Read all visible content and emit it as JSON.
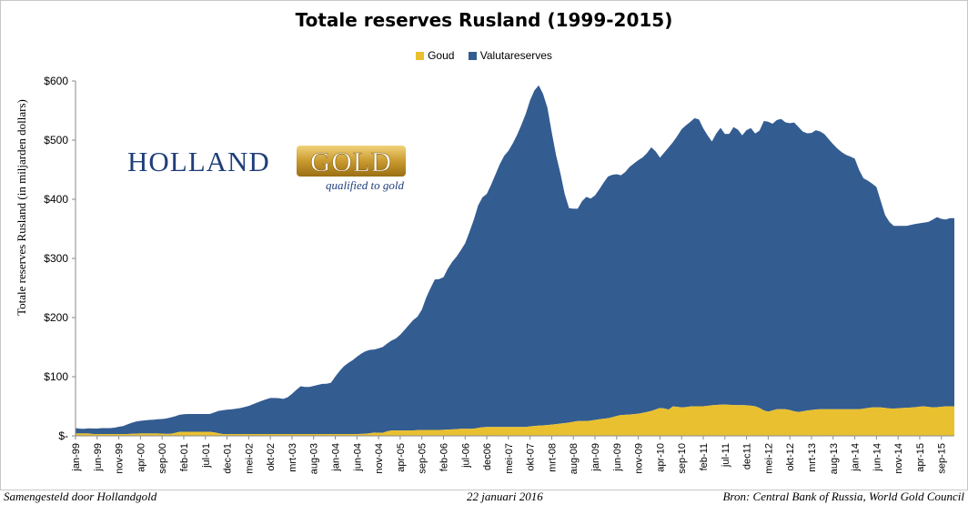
{
  "footer": {
    "left": "Samengesteld door Hollandgold",
    "center": "22 januari 2016",
    "right": "Bron: Central Bank of Russia, World Gold Council"
  },
  "logo": {
    "word1": "HOLLAND",
    "word2": "GOLD",
    "tagline": "qualified to gold",
    "navy": "#1f3f7a",
    "gold": "#c99a2e"
  },
  "colors": {
    "goud": "#e8c030",
    "valuta": "#335c91"
  },
  "chart_data": {
    "type": "area",
    "stacked": true,
    "title": "Totale reserves Rusland (1999-2015)",
    "ylabel": "Totale reserves Rusland (in miljarden dollars)",
    "xlabel": "",
    "ylim": [
      0,
      600
    ],
    "yticks": [
      "$-",
      "$100",
      "$200",
      "$300",
      "$400",
      "$500",
      "$600"
    ],
    "xtick_labels": [
      "jan-99",
      "jun-99",
      "nov-99",
      "apr-00",
      "sep-00",
      "feb-01",
      "jul-01",
      "dec-01",
      "mei-02",
      "okt-02",
      "mrt-03",
      "aug-03",
      "jan-04",
      "jun-04",
      "nov-04",
      "apr-05",
      "sep-05",
      "feb-06",
      "jul-06",
      "dec06",
      "mei-07",
      "okt-07",
      "mrt-08",
      "aug-08",
      "jan-09",
      "jun-09",
      "nov-09",
      "apr-10",
      "sep-10",
      "feb-11",
      "jul-11",
      "dec11",
      "mei-12",
      "okt-12",
      "mrt-13",
      "aug-13",
      "jan-14",
      "jun-14",
      "nov-14",
      "apr-15",
      "sep-15"
    ],
    "legend": {
      "position": "top"
    },
    "grid": false,
    "series": [
      {
        "name": "Goud",
        "color": "#e8c030",
        "points": [
          [
            0,
            4
          ],
          [
            2,
            4
          ],
          [
            4,
            4
          ],
          [
            5,
            3
          ],
          [
            9,
            3
          ],
          [
            12,
            3
          ],
          [
            15,
            3
          ],
          [
            18,
            4
          ],
          [
            21,
            4
          ],
          [
            24,
            4
          ],
          [
            27,
            3
          ],
          [
            30,
            7
          ],
          [
            33,
            7
          ],
          [
            36,
            7
          ],
          [
            39,
            7
          ],
          [
            42,
            3
          ],
          [
            45,
            3
          ],
          [
            48,
            3
          ],
          [
            51,
            3
          ],
          [
            54,
            3
          ],
          [
            57,
            3
          ],
          [
            60,
            3
          ],
          [
            63,
            3
          ],
          [
            66,
            3
          ],
          [
            69,
            3
          ],
          [
            72,
            3
          ],
          [
            75,
            3
          ],
          [
            78,
            3
          ],
          [
            81,
            3
          ],
          [
            84,
            4
          ],
          [
            86,
            6
          ],
          [
            87,
            5
          ],
          [
            88,
            5
          ],
          [
            90,
            9
          ],
          [
            93,
            9
          ],
          [
            96,
            9
          ],
          [
            99,
            10
          ],
          [
            102,
            10
          ],
          [
            105,
            10
          ],
          [
            108,
            11
          ],
          [
            111,
            12
          ],
          [
            114,
            12
          ],
          [
            117,
            15
          ],
          [
            120,
            15
          ],
          [
            123,
            15
          ],
          [
            126,
            15
          ],
          [
            129,
            15
          ],
          [
            132,
            17
          ],
          [
            135,
            18
          ],
          [
            138,
            20
          ],
          [
            141,
            22
          ],
          [
            144,
            25
          ],
          [
            147,
            25
          ],
          [
            150,
            28
          ],
          [
            153,
            30
          ],
          [
            156,
            35
          ],
          [
            159,
            36
          ],
          [
            162,
            38
          ],
          [
            165,
            42
          ],
          [
            168,
            48
          ],
          [
            170,
            44
          ],
          [
            171,
            50
          ],
          [
            174,
            48
          ],
          [
            177,
            50
          ],
          [
            180,
            50
          ],
          [
            183,
            52
          ],
          [
            186,
            53
          ],
          [
            189,
            52
          ],
          [
            192,
            52
          ],
          [
            195,
            50
          ],
          [
            197,
            45
          ],
          [
            198,
            40
          ],
          [
            201,
            45
          ],
          [
            204,
            45
          ],
          [
            207,
            40
          ],
          [
            210,
            43
          ],
          [
            213,
            45
          ],
          [
            216,
            45
          ],
          [
            219,
            45
          ],
          [
            222,
            45
          ],
          [
            225,
            45
          ],
          [
            228,
            48
          ],
          [
            231,
            48
          ],
          [
            234,
            46
          ],
          [
            237,
            47
          ],
          [
            240,
            48
          ],
          [
            243,
            50
          ],
          [
            246,
            48
          ],
          [
            250,
            50
          ],
          [
            252,
            50
          ]
        ]
      },
      {
        "name": "Valutareserves",
        "color": "#335c91",
        "points": [
          [
            0,
            13
          ],
          [
            2,
            12
          ],
          [
            4,
            12
          ],
          [
            6,
            13
          ],
          [
            8,
            12
          ],
          [
            10,
            13
          ],
          [
            12,
            13
          ],
          [
            14,
            13
          ],
          [
            16,
            14
          ],
          [
            18,
            16
          ],
          [
            20,
            17
          ],
          [
            21,
            20
          ],
          [
            24,
            24
          ],
          [
            27,
            26
          ],
          [
            30,
            27
          ],
          [
            33,
            28
          ],
          [
            36,
            29
          ],
          [
            39,
            32
          ],
          [
            42,
            36
          ],
          [
            45,
            37
          ],
          [
            48,
            37
          ],
          [
            51,
            37
          ],
          [
            54,
            37
          ],
          [
            57,
            42
          ],
          [
            60,
            44
          ],
          [
            63,
            45
          ],
          [
            66,
            47
          ],
          [
            69,
            50
          ],
          [
            72,
            55
          ],
          [
            75,
            60
          ],
          [
            78,
            64
          ],
          [
            81,
            64
          ],
          [
            84,
            62
          ],
          [
            87,
            72
          ],
          [
            90,
            84
          ],
          [
            93,
            82
          ],
          [
            96,
            85
          ],
          [
            99,
            88
          ],
          [
            102,
            88
          ],
          [
            105,
            106
          ],
          [
            108,
            120
          ],
          [
            111,
            128
          ],
          [
            114,
            138
          ],
          [
            117,
            145
          ],
          [
            120,
            146
          ],
          [
            123,
            150
          ],
          [
            126,
            160
          ],
          [
            129,
            166
          ],
          [
            132,
            180
          ],
          [
            135,
            195
          ],
          [
            138,
            205
          ],
          [
            141,
            240
          ],
          [
            144,
            265
          ],
          [
            147,
            265
          ],
          [
            150,
            290
          ],
          [
            153,
            305
          ],
          [
            156,
            325
          ],
          [
            159,
            358
          ],
          [
            162,
            400
          ],
          [
            165,
            410
          ],
          [
            168,
            440
          ],
          [
            171,
            470
          ],
          [
            174,
            485
          ],
          [
            177,
            510
          ],
          [
            180,
            540
          ],
          [
            183,
            580
          ],
          [
            186,
            595
          ],
          [
            189,
            555
          ],
          [
            192,
            483
          ],
          [
            195,
            430
          ],
          [
            197,
            385
          ],
          [
            198,
            385
          ],
          [
            201,
            383
          ],
          [
            204,
            405
          ],
          [
            207,
            400
          ],
          [
            210,
            418
          ],
          [
            213,
            438
          ],
          [
            216,
            443
          ],
          [
            219,
            440
          ],
          [
            222,
            455
          ],
          [
            225,
            465
          ],
          [
            228,
            473
          ],
          [
            231,
            490
          ],
          [
            234,
            470
          ],
          [
            237,
            485
          ],
          [
            240,
            500
          ],
          [
            243,
            520
          ],
          [
            246,
            530
          ],
          [
            249,
            541
          ],
          [
            252,
            515
          ],
          [
            255,
            497
          ],
          [
            258,
            523
          ],
          [
            261,
            505
          ],
          [
            264,
            525
          ],
          [
            267,
            508
          ],
          [
            270,
            523
          ],
          [
            273,
            507
          ],
          [
            276,
            535
          ],
          [
            279,
            527
          ],
          [
            282,
            538
          ],
          [
            285,
            528
          ],
          [
            288,
            530
          ],
          [
            291,
            515
          ],
          [
            294,
            510
          ],
          [
            297,
            518
          ],
          [
            300,
            510
          ],
          [
            303,
            495
          ],
          [
            306,
            482
          ],
          [
            309,
            474
          ],
          [
            312,
            470
          ],
          [
            315,
            437
          ],
          [
            318,
            430
          ],
          [
            321,
            420
          ],
          [
            324,
            375
          ],
          [
            327,
            355
          ],
          [
            330,
            355
          ],
          [
            333,
            355
          ],
          [
            336,
            358
          ],
          [
            339,
            360
          ],
          [
            342,
            362
          ],
          [
            345,
            370
          ],
          [
            348,
            365
          ],
          [
            350,
            368
          ],
          [
            352,
            368
          ]
        ]
      }
    ]
  }
}
